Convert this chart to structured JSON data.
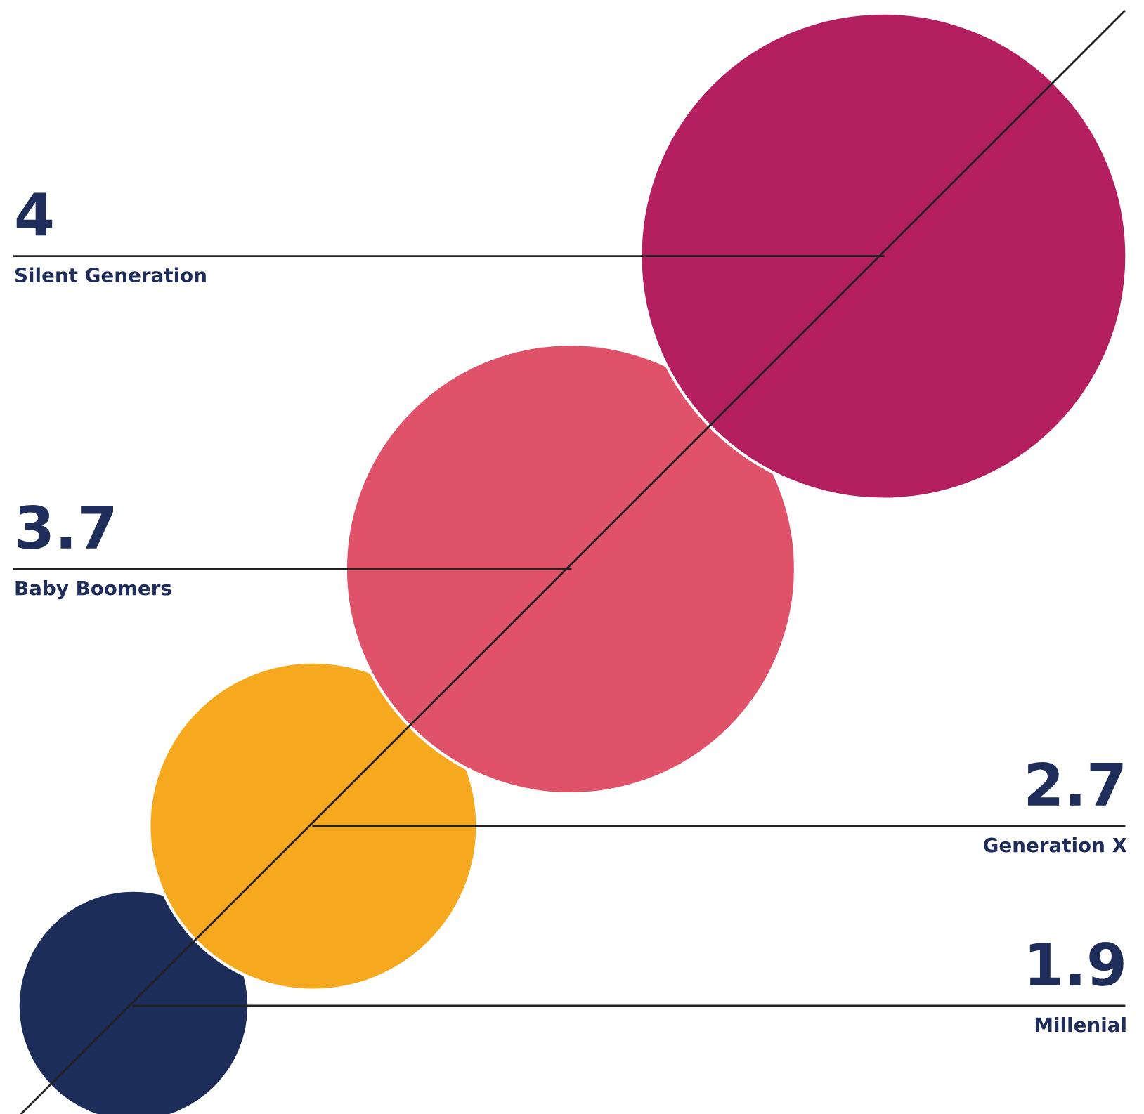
{
  "chart_data": {
    "type": "other",
    "categories": [
      "Silent Generation",
      "Baby Boomers",
      "Generation X",
      "Millenial"
    ],
    "values": [
      4,
      3.7,
      2.7,
      1.9
    ],
    "colors": [
      "#b31f5f",
      "#e0516a",
      "#f6a81f",
      "#1c2d5a"
    ],
    "data_labels": true
  }
}
